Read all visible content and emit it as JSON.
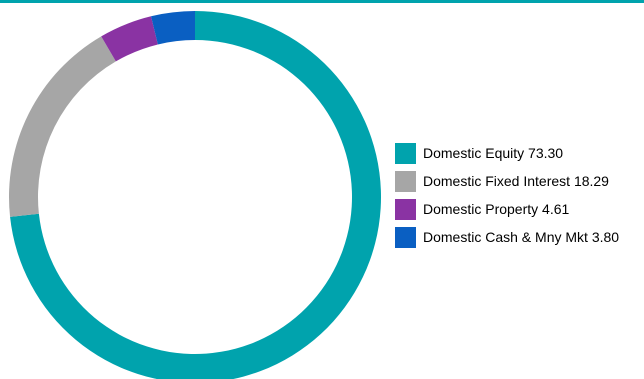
{
  "chart_data": {
    "type": "pie",
    "variant": "donut",
    "legend_position": "right",
    "accent_rule_color": "#00a3ad",
    "series": [
      {
        "name": "Domestic Equity",
        "value": 73.3,
        "color": "#00a3ad",
        "legend_label": "Domestic Equity 73.30"
      },
      {
        "name": "Domestic Fixed Interest",
        "value": 18.29,
        "color": "#a6a6a6",
        "legend_label": "Domestic Fixed Interest 18.29"
      },
      {
        "name": "Domestic Property",
        "value": 4.61,
        "color": "#8a33a3",
        "legend_label": "Domestic Property 4.61"
      },
      {
        "name": "Domestic Cash & Mny Mkt",
        "value": 3.8,
        "color": "#0a5fc2",
        "legend_label": "Domestic Cash & Mny Mkt 3.80"
      }
    ]
  }
}
